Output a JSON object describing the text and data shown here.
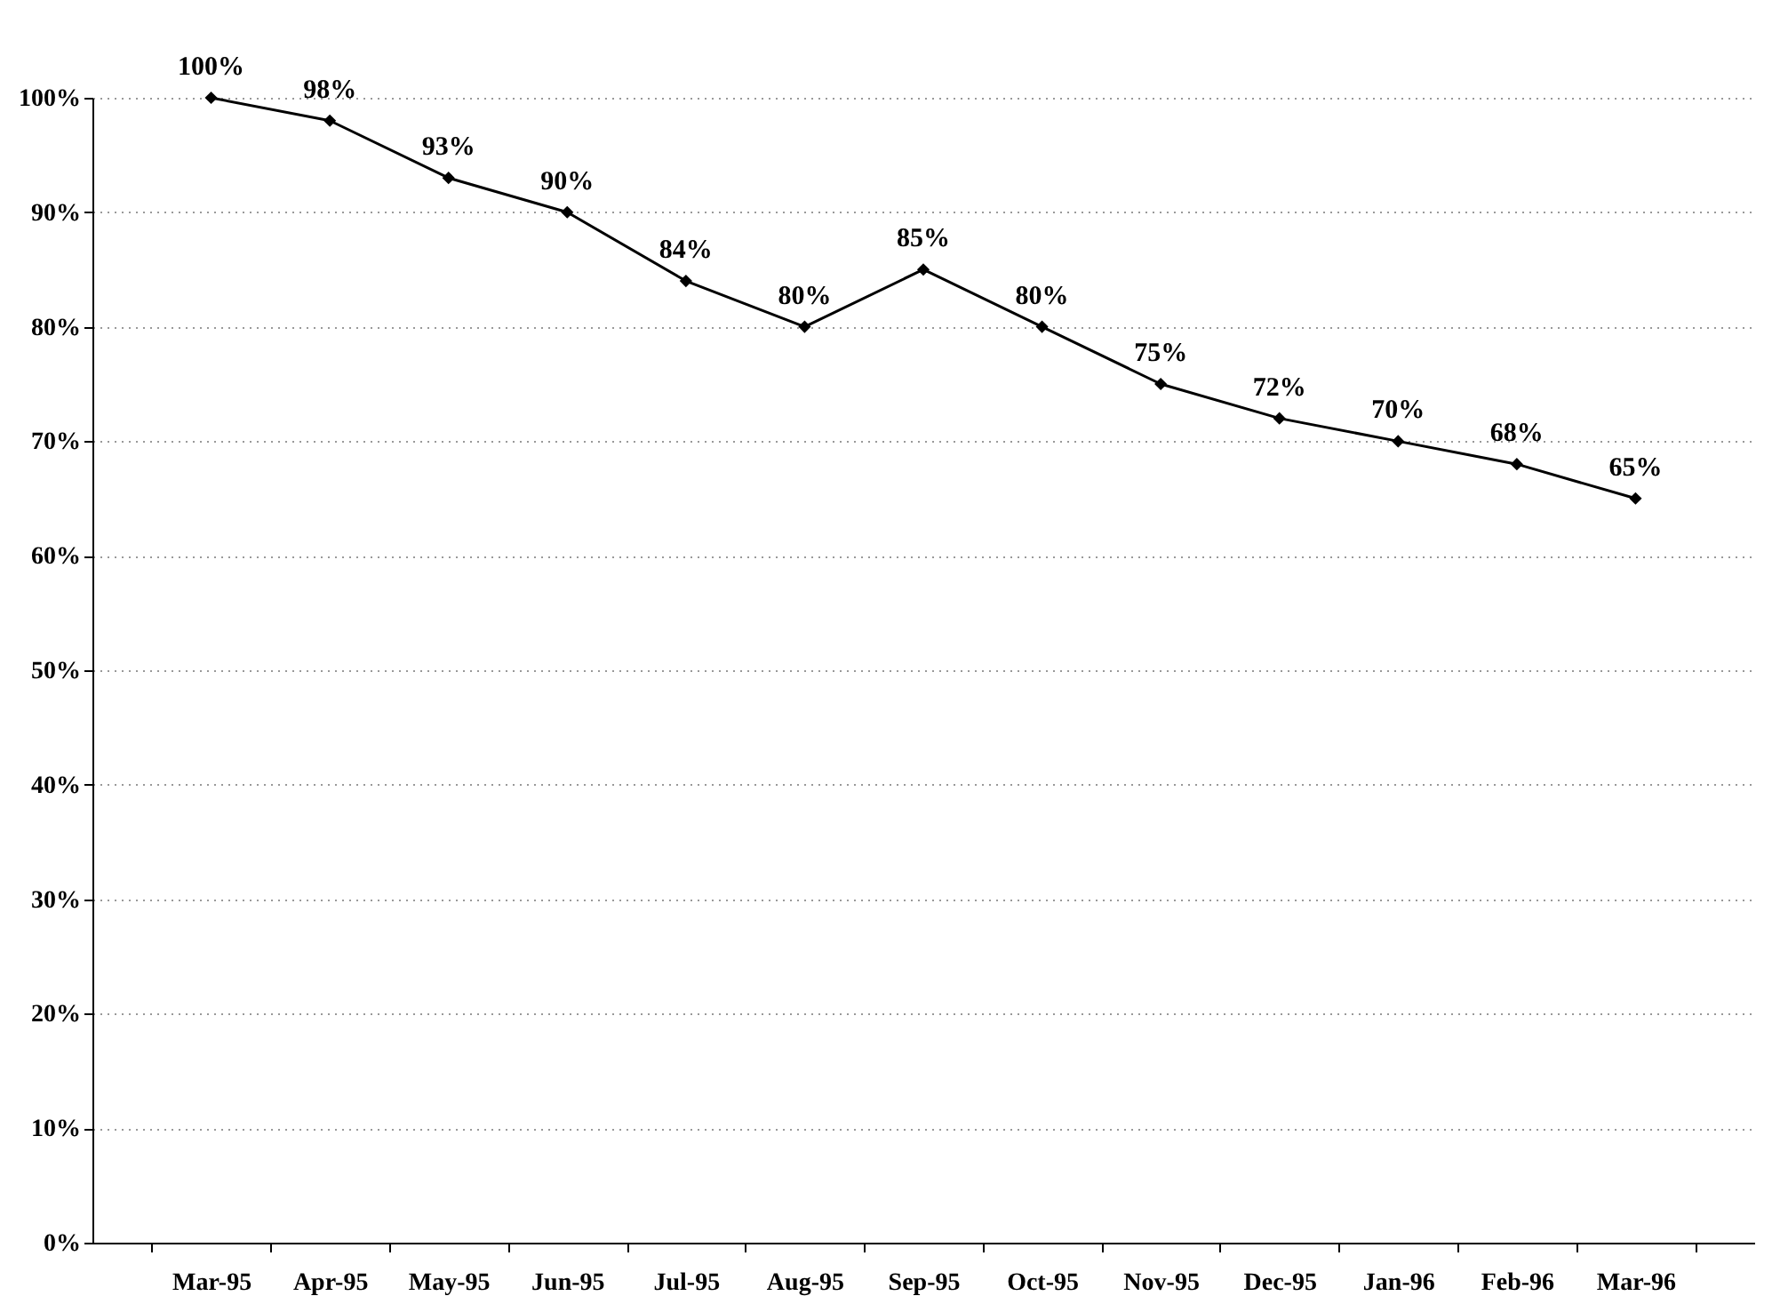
{
  "chart_data": {
    "type": "line",
    "categories": [
      "Mar-95",
      "Apr-95",
      "May-95",
      "Jun-95",
      "Jul-95",
      "Aug-95",
      "Sep-95",
      "Oct-95",
      "Nov-95",
      "Dec-95",
      "Jan-96",
      "Feb-96",
      "Mar-96"
    ],
    "series": [
      {
        "color": "#000000",
        "values": [
          100,
          98,
          93,
          90,
          84,
          80,
          85,
          80,
          75,
          72,
          70,
          68,
          65
        ],
        "value_labels": [
          "100%",
          "98%",
          "93%",
          "90%",
          "84%",
          "80%",
          "85%",
          "80%",
          "75%",
          "72%",
          "70%",
          "68%",
          "65%"
        ]
      }
    ],
    "ylim": [
      0,
      100
    ],
    "yticks": [
      {
        "value": 0,
        "label": "0%"
      },
      {
        "value": 10,
        "label": "10%"
      },
      {
        "value": 20,
        "label": "20%"
      },
      {
        "value": 30,
        "label": "30%"
      },
      {
        "value": 40,
        "label": "40%"
      },
      {
        "value": 50,
        "label": "50%"
      },
      {
        "value": 60,
        "label": "60%"
      },
      {
        "value": 70,
        "label": "70%"
      },
      {
        "value": 80,
        "label": "80%"
      },
      {
        "value": 90,
        "label": "90%"
      },
      {
        "value": 100,
        "label": "100%"
      }
    ],
    "grid": "y",
    "marker": "diamond",
    "line_style": "solid"
  }
}
